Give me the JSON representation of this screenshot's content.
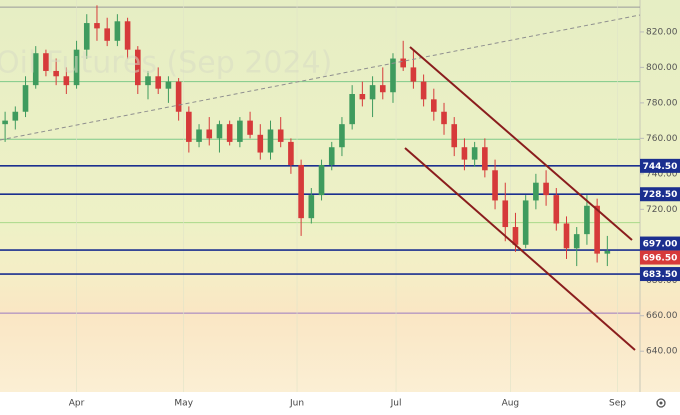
{
  "chart_data": {
    "type": "candlestick",
    "watermark": "Oil Futures (Sep 2024)",
    "categories": [
      null,
      null,
      null,
      null,
      null,
      null,
      null,
      null,
      null,
      null,
      null,
      null,
      null,
      null,
      null,
      null,
      null,
      null,
      null,
      null,
      null,
      null,
      null,
      null,
      null,
      null,
      null,
      null,
      null,
      null,
      null,
      null,
      null,
      null,
      null,
      null,
      null,
      null,
      null,
      null,
      null,
      null,
      null,
      null,
      null,
      null,
      null,
      null,
      null,
      null,
      null,
      null,
      null,
      null,
      null,
      null,
      null,
      null,
      null,
      null
    ],
    "open": [
      768,
      770,
      775,
      790,
      808,
      798,
      795,
      790,
      810,
      825,
      822,
      815,
      826,
      810,
      790,
      795,
      788,
      792,
      775,
      758,
      765,
      760,
      768,
      758,
      770,
      762,
      752,
      765,
      758,
      745,
      715,
      728,
      745,
      755,
      768,
      785,
      782,
      790,
      786,
      805,
      800,
      792,
      782,
      775,
      768,
      755,
      748,
      755,
      742,
      725,
      710,
      700,
      725,
      735,
      728,
      712,
      698,
      706,
      722,
      695
    ],
    "high": [
      775,
      778,
      795,
      812,
      810,
      805,
      800,
      815,
      830,
      835,
      828,
      830,
      828,
      812,
      798,
      800,
      795,
      794,
      778,
      768,
      772,
      770,
      770,
      772,
      775,
      768,
      770,
      772,
      760,
      748,
      732,
      748,
      758,
      772,
      790,
      792,
      795,
      800,
      808,
      815,
      810,
      796,
      788,
      780,
      772,
      760,
      758,
      760,
      748,
      735,
      718,
      728,
      740,
      742,
      732,
      716,
      710,
      728,
      726,
      705
    ],
    "low": [
      758,
      765,
      772,
      788,
      795,
      790,
      785,
      788,
      805,
      815,
      812,
      812,
      805,
      785,
      782,
      785,
      780,
      770,
      752,
      755,
      756,
      752,
      756,
      755,
      760,
      748,
      748,
      755,
      740,
      705,
      712,
      725,
      742,
      750,
      765,
      778,
      772,
      782,
      780,
      798,
      788,
      778,
      770,
      762,
      750,
      742,
      744,
      738,
      720,
      702,
      696,
      698,
      720,
      722,
      708,
      692,
      688,
      700,
      690,
      688
    ],
    "close": [
      770,
      775,
      790,
      808,
      798,
      795,
      790,
      810,
      825,
      822,
      815,
      826,
      810,
      790,
      795,
      788,
      792,
      775,
      758,
      765,
      760,
      768,
      758,
      770,
      762,
      752,
      765,
      758,
      745,
      715,
      728,
      745,
      755,
      768,
      785,
      782,
      790,
      786,
      805,
      800,
      792,
      782,
      775,
      768,
      755,
      748,
      755,
      742,
      725,
      710,
      700,
      725,
      735,
      728,
      712,
      698,
      706,
      722,
      695,
      696.5
    ],
    "up_color": "#3f9b5e",
    "down_color": "#d63a3a",
    "xlim": [
      -0.5,
      62.2
    ],
    "xticks": [
      {
        "value": 7,
        "label": "Apr"
      },
      {
        "value": 17.5,
        "label": "May"
      },
      {
        "value": 28.6,
        "label": "Jun"
      },
      {
        "value": 38.3,
        "label": "Jul"
      },
      {
        "value": 49.5,
        "label": "Aug"
      },
      {
        "value": 60,
        "label": "Sep"
      }
    ],
    "ylim": [
      617,
      838
    ],
    "yticks": [
      {
        "value": 640,
        "label": "640.00"
      },
      {
        "value": 660,
        "label": "660.00"
      },
      {
        "value": 680,
        "label": "680.00"
      },
      {
        "value": 700,
        "label": "700.00"
      },
      {
        "value": 720,
        "label": "720.00"
      },
      {
        "value": 740,
        "label": "740.00"
      },
      {
        "value": 760,
        "label": "760.00"
      },
      {
        "value": 780,
        "label": "780.00"
      },
      {
        "value": 800,
        "label": "800.00"
      },
      {
        "value": 820,
        "label": "820.00"
      }
    ],
    "levels": [
      {
        "value": 744.5,
        "label": "744.50",
        "color": "#1b2f8f"
      },
      {
        "value": 728.5,
        "label": "728.50",
        "color": "#1b2f8f"
      },
      {
        "value": 697,
        "label": "697.00",
        "color": "#1b2f8f"
      },
      {
        "value": 683.5,
        "label": "683.50",
        "color": "#1b2f8f"
      }
    ],
    "last_price_label": "696.50",
    "last_price_color": "#d63a3a",
    "thin_lines": [
      {
        "value": 834,
        "color": "#9a9a9a"
      },
      {
        "value": 792,
        "color": "#7fc98a"
      },
      {
        "value": 759.5,
        "color": "#7fc98a"
      },
      {
        "value": 712.5,
        "color": "#a9d98a"
      },
      {
        "value": 661.5,
        "color": "#9a7ac0"
      }
    ]
  }
}
